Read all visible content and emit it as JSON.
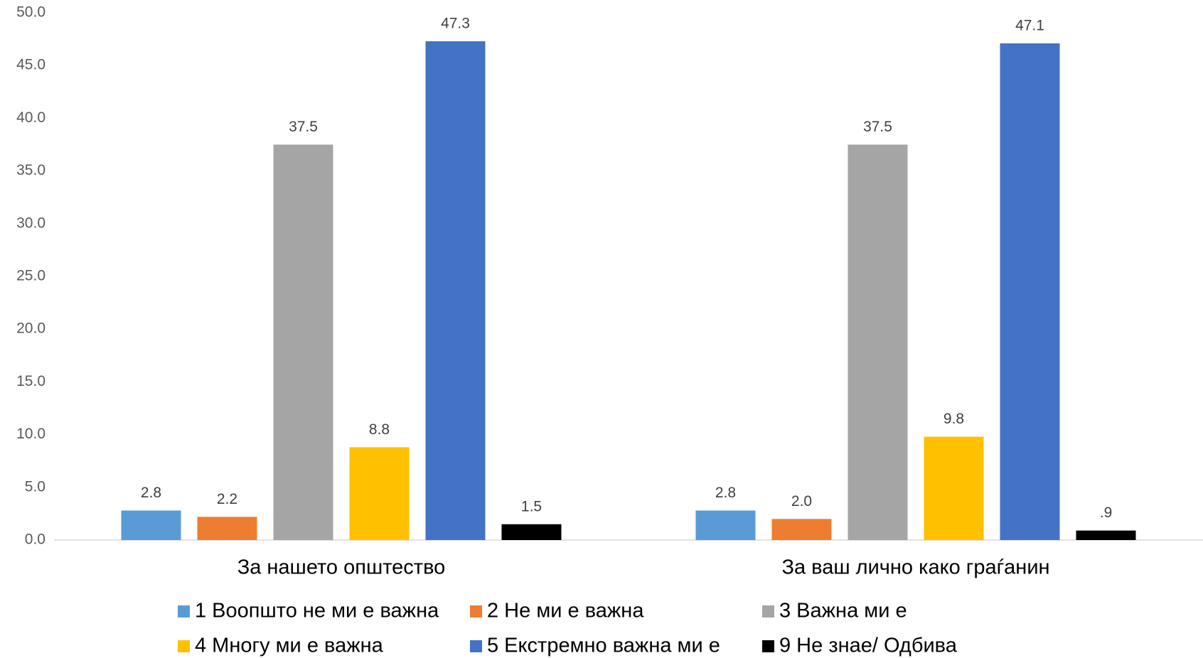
{
  "chart_data": {
    "type": "bar",
    "categories": [
      "За нашето општество",
      "За ваш лично како граѓанин"
    ],
    "series": [
      {
        "name": "1 Воопшто не ми е важна",
        "color": "#5b9bd5",
        "values": [
          2.8,
          2.8
        ]
      },
      {
        "name": "2 Не ми е важна",
        "color": "#ed7d31",
        "values": [
          2.2,
          2.0
        ],
        "value_labels": [
          "2.2",
          "2.0"
        ]
      },
      {
        "name": "3 Важна ми е",
        "color": "#a5a5a5",
        "values": [
          37.5,
          37.5
        ]
      },
      {
        "name": "4 Многу ми е важна",
        "color": "#ffc000",
        "values": [
          8.8,
          9.8
        ]
      },
      {
        "name": "5 Екстремно важна ми е",
        "color": "#4472c4",
        "values": [
          47.3,
          47.1
        ]
      },
      {
        "name": "9 Не знае/ Одбива",
        "color": "#000000",
        "values": [
          1.5,
          0.9
        ],
        "value_labels": [
          "1.5",
          ".9"
        ]
      }
    ],
    "ylim": [
      0,
      50
    ],
    "yticks": [
      {
        "value": 0,
        "label": "0.0"
      },
      {
        "value": 5,
        "label": "5.0"
      },
      {
        "value": 10,
        "label": "10.0"
      },
      {
        "value": 15,
        "label": "15.0"
      },
      {
        "value": 20,
        "label": "20.0"
      },
      {
        "value": 25,
        "label": "25.0"
      },
      {
        "value": 30,
        "label": "30.0"
      },
      {
        "value": 35,
        "label": "35.0"
      },
      {
        "value": 40,
        "label": "40.0"
      },
      {
        "value": 45,
        "label": "45.0"
      },
      {
        "value": 50,
        "label": "50.0"
      }
    ],
    "grid": false
  }
}
